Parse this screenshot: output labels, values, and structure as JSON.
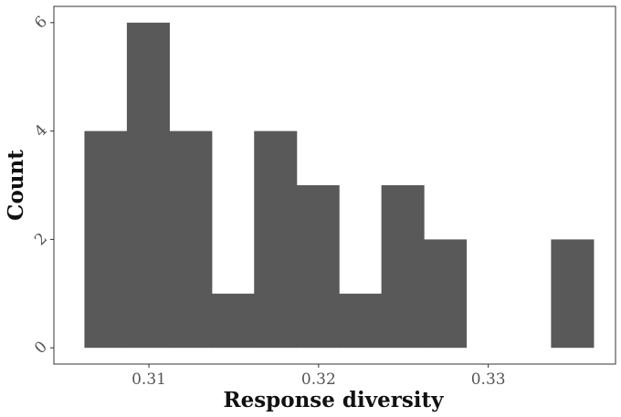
{
  "chart_data": {
    "type": "bar",
    "subtype": "histogram",
    "xlabel": "Response diversity",
    "ylabel": "Count",
    "xlim": [
      0.3044,
      0.3375
    ],
    "ylim": [
      -0.3,
      6.3
    ],
    "x_ticks": [
      0.31,
      0.32,
      0.33
    ],
    "x_tick_labels": [
      "0.31",
      "0.32",
      "0.33"
    ],
    "y_ticks": [
      0,
      2,
      4,
      6
    ],
    "y_tick_labels": [
      "0",
      "2",
      "4",
      "6"
    ],
    "bins": [
      {
        "x0": 0.3062,
        "x1": 0.3087,
        "count": 4
      },
      {
        "x0": 0.3087,
        "x1": 0.3112,
        "count": 6
      },
      {
        "x0": 0.3112,
        "x1": 0.3137,
        "count": 4
      },
      {
        "x0": 0.3137,
        "x1": 0.3162,
        "count": 1
      },
      {
        "x0": 0.3162,
        "x1": 0.3187,
        "count": 4
      },
      {
        "x0": 0.3187,
        "x1": 0.3212,
        "count": 3
      },
      {
        "x0": 0.3212,
        "x1": 0.3237,
        "count": 1
      },
      {
        "x0": 0.3237,
        "x1": 0.3262,
        "count": 3
      },
      {
        "x0": 0.3262,
        "x1": 0.3287,
        "count": 2
      },
      {
        "x0": 0.3287,
        "x1": 0.3312,
        "count": 0
      },
      {
        "x0": 0.3312,
        "x1": 0.3337,
        "count": 0
      },
      {
        "x0": 0.3337,
        "x1": 0.3362,
        "count": 2
      }
    ],
    "bar_color": "#595959",
    "grid": false
  }
}
